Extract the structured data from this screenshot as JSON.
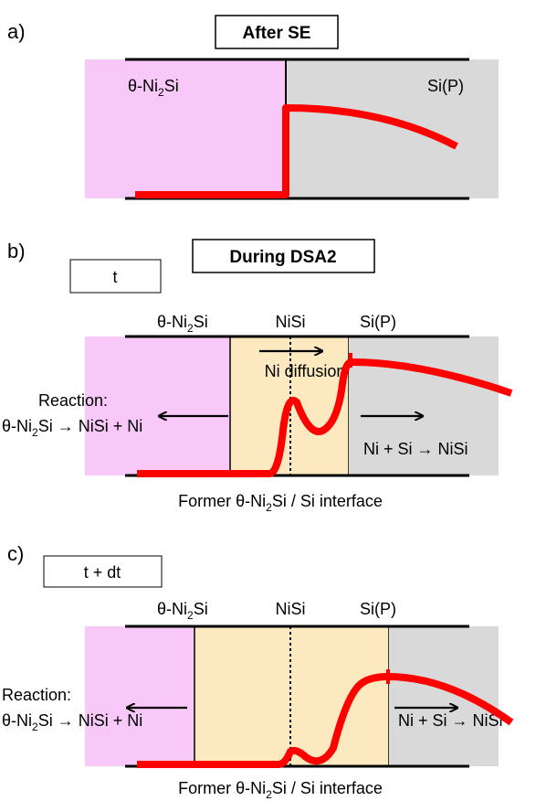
{
  "panels": [
    {
      "letter": "a)",
      "title": "After SE",
      "left_label": {
        "before": "θ-Ni",
        "sub": "2",
        "after": "Si"
      },
      "right_label": "Si(P)"
    },
    {
      "letter": "b)",
      "title": "During DSA2",
      "time": "t",
      "left_label": {
        "before": "θ-Ni",
        "sub": "2",
        "after": "Si"
      },
      "middle_label": "NiSi",
      "right_label": "Si(P)",
      "diffusion": "Ni diffusion",
      "reaction_title": "Reaction:",
      "reaction_left": {
        "before": "θ-Ni",
        "sub": "2",
        "after": "Si → NiSi + Ni"
      },
      "reaction_right": "Ni + Si → NiSi",
      "interface": {
        "before": "Former θ-Ni",
        "sub": "2",
        "after": "Si / Si interface"
      }
    },
    {
      "letter": "c)",
      "time": "t + dt",
      "left_label": {
        "before": "θ-Ni",
        "sub": "2",
        "after": "Si"
      },
      "middle_label": "NiSi",
      "right_label": "Si(P)",
      "reaction_title": "Reaction:",
      "reaction_left": {
        "before": "θ-Ni",
        "sub": "2",
        "after": "Si → NiSi + Ni"
      },
      "reaction_right": "Ni + Si → NiSi",
      "interface": {
        "before": "Former θ-Ni",
        "sub": "2",
        "after": "Si / Si interface"
      }
    }
  ]
}
